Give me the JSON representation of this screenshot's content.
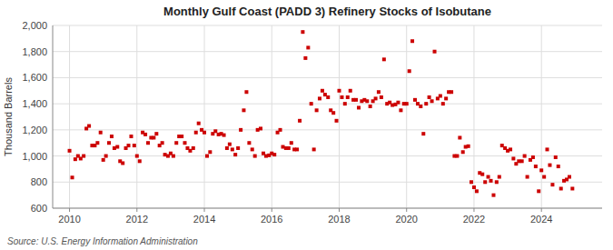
{
  "chart_data": {
    "type": "scatter",
    "title": "Monthly Gulf Coast (PADD 3) Refinery Stocks of Isobutane",
    "ylabel": "Thousand Barrels",
    "source": "Source: U.S. Energy Information Administration",
    "color": "#cc0000",
    "marker": "square",
    "grid": true,
    "xlim": [
      2009.5,
      2025.8
    ],
    "xticks": [
      2010,
      2012,
      2014,
      2016,
      2018,
      2020,
      2022,
      2024
    ],
    "ylim": [
      600,
      2000
    ],
    "yticks": [
      600,
      800,
      {
        "value": 1000,
        "label": "1,000"
      },
      {
        "value": 1200,
        "label": "1,200"
      },
      {
        "value": 1400,
        "label": "1,400"
      },
      {
        "value": 1600,
        "label": "1,600"
      },
      {
        "value": 1800,
        "label": "1,800"
      },
      {
        "value": 2000,
        "label": "2,000"
      }
    ],
    "x": [
      2010.0,
      2010.08,
      2010.17,
      2010.25,
      2010.33,
      2010.42,
      2010.5,
      2010.58,
      2010.67,
      2010.75,
      2010.83,
      2010.92,
      2011.0,
      2011.08,
      2011.17,
      2011.25,
      2011.33,
      2011.42,
      2011.5,
      2011.58,
      2011.67,
      2011.75,
      2011.83,
      2011.92,
      2012.0,
      2012.08,
      2012.17,
      2012.25,
      2012.33,
      2012.42,
      2012.5,
      2012.58,
      2012.67,
      2012.75,
      2012.83,
      2012.92,
      2013.0,
      2013.08,
      2013.17,
      2013.25,
      2013.33,
      2013.42,
      2013.5,
      2013.58,
      2013.67,
      2013.75,
      2013.83,
      2013.92,
      2014.0,
      2014.08,
      2014.17,
      2014.25,
      2014.33,
      2014.42,
      2014.5,
      2014.58,
      2014.67,
      2014.75,
      2014.83,
      2014.92,
      2015.0,
      2015.08,
      2015.17,
      2015.25,
      2015.33,
      2015.42,
      2015.5,
      2015.58,
      2015.67,
      2015.75,
      2015.83,
      2015.92,
      2016.0,
      2016.08,
      2016.17,
      2016.25,
      2016.33,
      2016.42,
      2016.5,
      2016.58,
      2016.67,
      2016.75,
      2016.83,
      2016.92,
      2017.0,
      2017.08,
      2017.17,
      2017.25,
      2017.33,
      2017.42,
      2017.5,
      2017.58,
      2017.67,
      2017.75,
      2017.83,
      2017.92,
      2018.0,
      2018.08,
      2018.17,
      2018.25,
      2018.33,
      2018.42,
      2018.5,
      2018.58,
      2018.67,
      2018.75,
      2018.83,
      2018.92,
      2019.0,
      2019.08,
      2019.17,
      2019.25,
      2019.33,
      2019.42,
      2019.5,
      2019.58,
      2019.67,
      2019.75,
      2019.83,
      2019.92,
      2020.0,
      2020.08,
      2020.17,
      2020.25,
      2020.33,
      2020.42,
      2020.5,
      2020.58,
      2020.67,
      2020.75,
      2020.83,
      2020.92,
      2021.0,
      2021.08,
      2021.17,
      2021.25,
      2021.33,
      2021.42,
      2021.5,
      2021.58,
      2021.67,
      2021.75,
      2021.83,
      2021.92,
      2022.0,
      2022.08,
      2022.17,
      2022.25,
      2022.33,
      2022.42,
      2022.5,
      2022.58,
      2022.67,
      2022.75,
      2022.83,
      2022.92,
      2023.0,
      2023.08,
      2023.17,
      2023.25,
      2023.33,
      2023.42,
      2023.5,
      2023.58,
      2023.67,
      2023.75,
      2023.83,
      2023.92,
      2024.0,
      2024.08,
      2024.17,
      2024.25,
      2024.33,
      2024.42,
      2024.5,
      2024.58,
      2024.67,
      2024.75,
      2024.83,
      2024.92
    ],
    "values": [
      1040,
      835,
      975,
      1000,
      980,
      1000,
      1210,
      1230,
      1080,
      1080,
      1100,
      1180,
      970,
      1000,
      1100,
      1150,
      1060,
      1070,
      960,
      945,
      1060,
      1080,
      1150,
      1080,
      1000,
      960,
      1180,
      1165,
      1100,
      1140,
      1140,
      1170,
      1080,
      1100,
      1010,
      1000,
      1020,
      1000,
      1100,
      1150,
      1150,
      1100,
      1060,
      1040,
      1060,
      1180,
      1250,
      1200,
      1180,
      1000,
      1030,
      1170,
      1190,
      1165,
      1170,
      1160,
      1060,
      1090,
      1050,
      1010,
      1060,
      1200,
      1350,
      1490,
      1100,
      1050,
      1000,
      1200,
      1210,
      1020,
      1000,
      1005,
      1020,
      1010,
      1180,
      1200,
      1070,
      1060,
      1060,
      1100,
      1050,
      1050,
      1270,
      1950,
      1750,
      1830,
      1400,
      1050,
      1350,
      1440,
      1500,
      1470,
      1450,
      1350,
      1330,
      1270,
      1500,
      1450,
      1400,
      1450,
      1500,
      1430,
      1430,
      1370,
      1420,
      1430,
      1420,
      1380,
      1420,
      1440,
      1490,
      1450,
      1740,
      1400,
      1410,
      1390,
      1395,
      1410,
      1350,
      1400,
      1400,
      1650,
      1880,
      1430,
      1400,
      1380,
      1170,
      1400,
      1450,
      1420,
      1800,
      1440,
      1460,
      1400,
      1440,
      1490,
      1490,
      1000,
      1000,
      1140,
      1030,
      1070,
      1075,
      800,
      760,
      730,
      870,
      860,
      800,
      840,
      810,
      700,
      800,
      840,
      1080,
      1060,
      1040,
      1050,
      980,
      940,
      960,
      960,
      1000,
      840,
      970,
      990,
      920,
      730,
      890,
      840,
      1050,
      930,
      780,
      990,
      920,
      750,
      810,
      820,
      840,
      750
    ]
  }
}
